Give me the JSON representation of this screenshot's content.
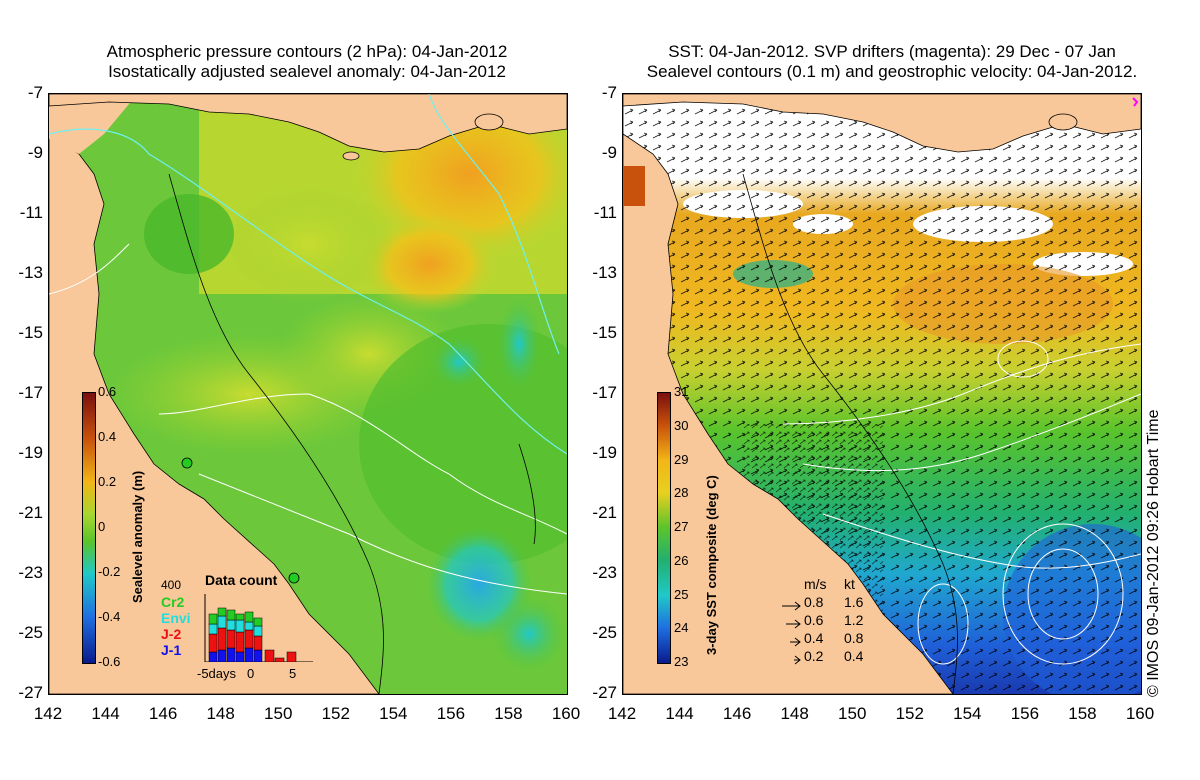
{
  "left_panel": {
    "title_line1": "Atmospheric pressure contours (2 hPa): 04-Jan-2012",
    "title_line2": "Isostatically adjusted sealevel anomaly: 04-Jan-2012",
    "colorbar": {
      "label": "Sealevel anomaly (m)",
      "ticks": [
        "0.6",
        "0.4",
        "0.2",
        "0",
        "-0.2",
        "-0.4",
        "-0.6"
      ],
      "colors": [
        "#7a0f0f",
        "#c8520c",
        "#f2b616",
        "#5ac42b",
        "#20c8c8",
        "#1f6fe0",
        "#0a1a8c"
      ]
    },
    "data_count": {
      "title": "Data count",
      "ymax": "400",
      "satellites": [
        {
          "name": "Cr2",
          "color": "#22cc22"
        },
        {
          "name": "Envi",
          "color": "#22dddd"
        },
        {
          "name": "J-2",
          "color": "#ee1111"
        },
        {
          "name": "J-1",
          "color": "#1111ee"
        }
      ],
      "xlabel_left": "-5days",
      "xlabel_mid": "0",
      "xlabel_right": "5"
    }
  },
  "right_panel": {
    "title_line1": "SST: 04-Jan-2012. SVP drifters (magenta): 29 Dec - 07 Jan",
    "title_line2": "Sealevel contours (0.1 m) and geostrophic velocity: 04-Jan-2012.",
    "colorbar": {
      "label": "3-day SST composite (deg C)",
      "ticks": [
        "31",
        "30",
        "29",
        "28",
        "27",
        "26",
        "25",
        "24",
        "23"
      ],
      "colors": [
        "#7a0f0f",
        "#c8520c",
        "#f2b616",
        "#e8d020",
        "#5ac42b",
        "#22b070",
        "#20c8c8",
        "#1f6fe0",
        "#0a1a8c"
      ]
    },
    "velocity_legend": {
      "header_ms": "m/s",
      "header_kt": "kt",
      "rows": [
        {
          "ms": "0.8",
          "kt": "1.6"
        },
        {
          "ms": "0.6",
          "kt": "1.2"
        },
        {
          "ms": "0.4",
          "kt": "0.8"
        },
        {
          "ms": "0.2",
          "kt": "0.4"
        }
      ]
    },
    "credit": "© IMOS 09-Jan-2012 09:26 Hobart Time"
  },
  "axes": {
    "y_ticks": [
      "-7",
      "-9",
      "-11",
      "-13",
      "-15",
      "-17",
      "-19",
      "-21",
      "-23",
      "-25",
      "-27"
    ],
    "x_ticks": [
      "142",
      "144",
      "146",
      "148",
      "150",
      "152",
      "154",
      "156",
      "158",
      "160"
    ]
  },
  "colors": {
    "land": "#f9c89a",
    "green": "#5ac42b",
    "yellow": "#f2c21a",
    "orange": "#f0a020",
    "cyan": "#20c8c8",
    "blue": "#1f6fe0"
  }
}
